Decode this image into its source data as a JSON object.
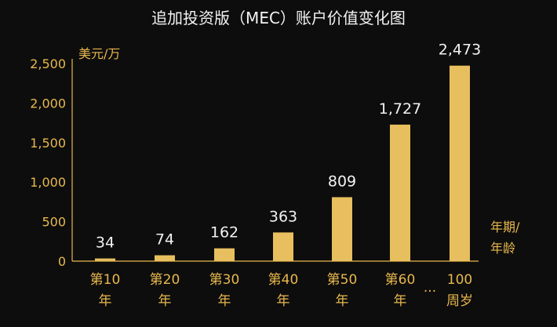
{
  "chart_data": {
    "type": "bar",
    "title": "追加投资版（MEC）账户价值变化图",
    "ylabel": "美元/万",
    "xlabel": [
      "年期/",
      "年龄"
    ],
    "ylim": [
      0,
      2500
    ],
    "yticks": [
      "0",
      "500",
      "1,000",
      "1,500",
      "2,000",
      "2,500"
    ],
    "categories": [
      [
        "第10",
        "年"
      ],
      [
        "第20",
        "年"
      ],
      [
        "第30",
        "年"
      ],
      [
        "第40",
        "年"
      ],
      [
        "第50",
        "年"
      ],
      [
        "第60",
        "年"
      ],
      [
        "100",
        "周岁"
      ]
    ],
    "values": [
      34,
      74,
      162,
      363,
      809,
      1727,
      2473
    ],
    "value_labels": [
      "34",
      "74",
      "162",
      "363",
      "809",
      "1,727",
      "2,473"
    ],
    "gap_marker": "...",
    "grid": false,
    "bar_color": "#e8bf5e"
  }
}
